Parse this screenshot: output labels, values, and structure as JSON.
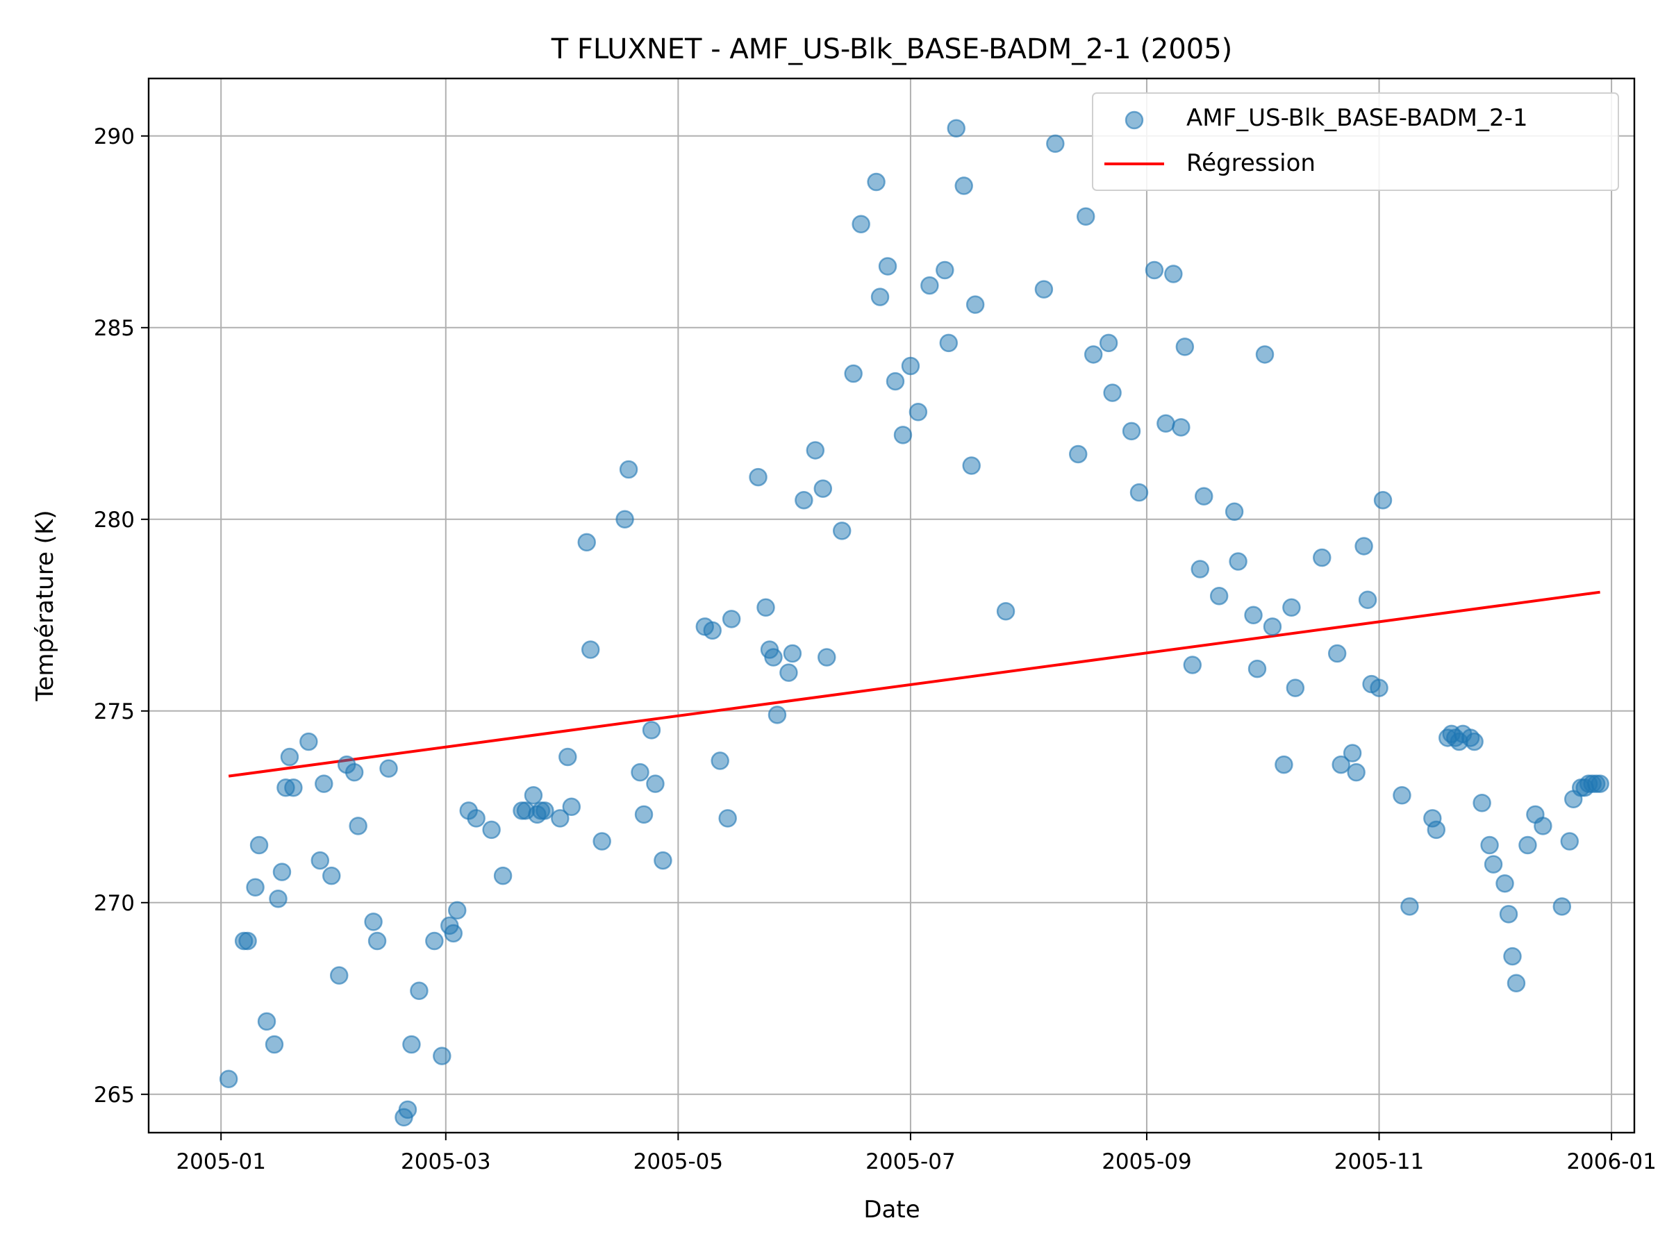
{
  "chart_data": {
    "type": "scatter",
    "title": "T FLUXNET - AMF_US-Blk_BASE-BADM_2-1 (2005)",
    "xlabel": "Date",
    "ylabel": "Température (K)",
    "xlim": [
      "2004-12-13",
      "2006-01-07"
    ],
    "ylim": [
      264.0,
      291.5
    ],
    "x_ticks": [
      "2005-01-01",
      "2005-03-01",
      "2005-05-01",
      "2005-07-01",
      "2005-09-01",
      "2005-11-01",
      "2006-01-01"
    ],
    "x_tick_labels": [
      "2005-01",
      "2005-03",
      "2005-05",
      "2005-07",
      "2005-09",
      "2005-11",
      "2006-01"
    ],
    "y_ticks": [
      265,
      270,
      275,
      280,
      285,
      290
    ],
    "y_tick_labels": [
      "265",
      "270",
      "275",
      "280",
      "285",
      "290"
    ],
    "grid": true,
    "legend_position": "top-right",
    "series": [
      {
        "name": "AMF_US-Blk_BASE-BADM_2-1",
        "kind": "scatter",
        "color": "#1f77b4",
        "points": [
          [
            "2005-01-03",
            265.4
          ],
          [
            "2005-01-07",
            269.0
          ],
          [
            "2005-01-08",
            269.0
          ],
          [
            "2005-01-10",
            270.4
          ],
          [
            "2005-01-11",
            271.5
          ],
          [
            "2005-01-13",
            266.9
          ],
          [
            "2005-01-15",
            266.3
          ],
          [
            "2005-01-16",
            270.1
          ],
          [
            "2005-01-17",
            270.8
          ],
          [
            "2005-01-18",
            273.0
          ],
          [
            "2005-01-19",
            273.8
          ],
          [
            "2005-01-20",
            273.0
          ],
          [
            "2005-01-24",
            274.2
          ],
          [
            "2005-01-27",
            271.1
          ],
          [
            "2005-01-28",
            273.1
          ],
          [
            "2005-01-30",
            270.7
          ],
          [
            "2005-02-01",
            268.1
          ],
          [
            "2005-02-03",
            273.6
          ],
          [
            "2005-02-05",
            273.4
          ],
          [
            "2005-02-06",
            272.0
          ],
          [
            "2005-02-10",
            269.5
          ],
          [
            "2005-02-11",
            269.0
          ],
          [
            "2005-02-14",
            273.5
          ],
          [
            "2005-02-18",
            264.4
          ],
          [
            "2005-02-19",
            264.6
          ],
          [
            "2005-02-20",
            266.3
          ],
          [
            "2005-02-22",
            267.7
          ],
          [
            "2005-02-26",
            269.0
          ],
          [
            "2005-02-28",
            266.0
          ],
          [
            "2005-03-02",
            269.4
          ],
          [
            "2005-03-03",
            269.2
          ],
          [
            "2005-03-04",
            269.8
          ],
          [
            "2005-03-07",
            272.4
          ],
          [
            "2005-03-09",
            272.2
          ],
          [
            "2005-03-13",
            271.9
          ],
          [
            "2005-03-16",
            270.7
          ],
          [
            "2005-03-21",
            272.4
          ],
          [
            "2005-03-22",
            272.4
          ],
          [
            "2005-03-24",
            272.8
          ],
          [
            "2005-03-25",
            272.3
          ],
          [
            "2005-03-26",
            272.4
          ],
          [
            "2005-03-27",
            272.4
          ],
          [
            "2005-03-31",
            272.2
          ],
          [
            "2005-04-02",
            273.8
          ],
          [
            "2005-04-03",
            272.5
          ],
          [
            "2005-04-07",
            279.4
          ],
          [
            "2005-04-08",
            276.6
          ],
          [
            "2005-04-11",
            271.6
          ],
          [
            "2005-04-17",
            280.0
          ],
          [
            "2005-04-18",
            281.3
          ],
          [
            "2005-04-21",
            273.4
          ],
          [
            "2005-04-22",
            272.3
          ],
          [
            "2005-04-24",
            274.5
          ],
          [
            "2005-04-25",
            273.1
          ],
          [
            "2005-04-27",
            271.1
          ],
          [
            "2005-05-08",
            277.2
          ],
          [
            "2005-05-10",
            277.1
          ],
          [
            "2005-05-12",
            273.7
          ],
          [
            "2005-05-14",
            272.2
          ],
          [
            "2005-05-15",
            277.4
          ],
          [
            "2005-05-22",
            281.1
          ],
          [
            "2005-05-24",
            277.7
          ],
          [
            "2005-05-25",
            276.6
          ],
          [
            "2005-05-26",
            276.4
          ],
          [
            "2005-05-27",
            274.9
          ],
          [
            "2005-05-30",
            276.0
          ],
          [
            "2005-05-31",
            276.5
          ],
          [
            "2005-06-03",
            280.5
          ],
          [
            "2005-06-06",
            281.8
          ],
          [
            "2005-06-08",
            280.8
          ],
          [
            "2005-06-09",
            276.4
          ],
          [
            "2005-06-13",
            279.7
          ],
          [
            "2005-06-16",
            283.8
          ],
          [
            "2005-06-18",
            287.7
          ],
          [
            "2005-06-22",
            288.8
          ],
          [
            "2005-06-23",
            285.8
          ],
          [
            "2005-06-25",
            286.6
          ],
          [
            "2005-06-27",
            283.6
          ],
          [
            "2005-06-29",
            282.2
          ],
          [
            "2005-07-01",
            284.0
          ],
          [
            "2005-07-03",
            282.8
          ],
          [
            "2005-07-06",
            286.1
          ],
          [
            "2005-07-10",
            286.5
          ],
          [
            "2005-07-11",
            284.6
          ],
          [
            "2005-07-13",
            290.2
          ],
          [
            "2005-07-15",
            288.7
          ],
          [
            "2005-07-17",
            281.4
          ],
          [
            "2005-07-18",
            285.6
          ],
          [
            "2005-07-26",
            277.6
          ],
          [
            "2005-08-05",
            286.0
          ],
          [
            "2005-08-08",
            289.8
          ],
          [
            "2005-08-14",
            281.7
          ],
          [
            "2005-08-16",
            287.9
          ],
          [
            "2005-08-18",
            284.3
          ],
          [
            "2005-08-22",
            284.6
          ],
          [
            "2005-08-23",
            283.3
          ],
          [
            "2005-08-28",
            282.3
          ],
          [
            "2005-08-30",
            280.7
          ],
          [
            "2005-09-03",
            286.5
          ],
          [
            "2005-09-06",
            282.5
          ],
          [
            "2005-09-08",
            286.4
          ],
          [
            "2005-09-10",
            282.4
          ],
          [
            "2005-09-11",
            284.5
          ],
          [
            "2005-09-13",
            276.2
          ],
          [
            "2005-09-15",
            278.7
          ],
          [
            "2005-09-16",
            280.6
          ],
          [
            "2005-09-20",
            278.0
          ],
          [
            "2005-09-24",
            280.2
          ],
          [
            "2005-09-25",
            278.9
          ],
          [
            "2005-09-29",
            277.5
          ],
          [
            "2005-09-30",
            276.1
          ],
          [
            "2005-10-02",
            284.3
          ],
          [
            "2005-10-04",
            277.2
          ],
          [
            "2005-10-07",
            273.6
          ],
          [
            "2005-10-09",
            277.7
          ],
          [
            "2005-10-10",
            275.6
          ],
          [
            "2005-10-17",
            279.0
          ],
          [
            "2005-10-21",
            276.5
          ],
          [
            "2005-10-22",
            273.6
          ],
          [
            "2005-10-25",
            273.9
          ],
          [
            "2005-10-26",
            273.4
          ],
          [
            "2005-10-28",
            279.3
          ],
          [
            "2005-10-29",
            277.9
          ],
          [
            "2005-10-30",
            275.7
          ],
          [
            "2005-11-01",
            275.6
          ],
          [
            "2005-11-02",
            280.5
          ],
          [
            "2005-11-07",
            272.8
          ],
          [
            "2005-11-09",
            269.9
          ],
          [
            "2005-11-15",
            272.2
          ],
          [
            "2005-11-16",
            271.9
          ],
          [
            "2005-11-19",
            274.3
          ],
          [
            "2005-11-20",
            274.4
          ],
          [
            "2005-11-21",
            274.3
          ],
          [
            "2005-11-22",
            274.2
          ],
          [
            "2005-11-23",
            274.4
          ],
          [
            "2005-11-25",
            274.3
          ],
          [
            "2005-11-26",
            274.2
          ],
          [
            "2005-11-28",
            272.6
          ],
          [
            "2005-11-30",
            271.5
          ],
          [
            "2005-12-01",
            271.0
          ],
          [
            "2005-12-04",
            270.5
          ],
          [
            "2005-12-05",
            269.7
          ],
          [
            "2005-12-06",
            268.6
          ],
          [
            "2005-12-07",
            267.9
          ],
          [
            "2005-12-10",
            271.5
          ],
          [
            "2005-12-12",
            272.3
          ],
          [
            "2005-12-14",
            272.0
          ],
          [
            "2005-12-19",
            269.9
          ],
          [
            "2005-12-21",
            271.6
          ],
          [
            "2005-12-22",
            272.7
          ],
          [
            "2005-12-24",
            273.0
          ],
          [
            "2005-12-25",
            273.0
          ],
          [
            "2005-12-26",
            273.1
          ],
          [
            "2005-12-27",
            273.1
          ],
          [
            "2005-12-28",
            273.1
          ],
          [
            "2005-12-29",
            273.1
          ]
        ]
      },
      {
        "name": "Régression",
        "kind": "line",
        "color": "#ff0000",
        "points": [
          [
            "2005-01-03",
            273.3
          ],
          [
            "2005-12-29",
            278.1
          ]
        ]
      }
    ]
  }
}
